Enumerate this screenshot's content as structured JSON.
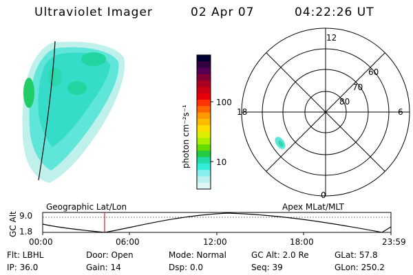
{
  "header": {
    "title": "Ultraviolet Imager",
    "date": "02 Apr 07",
    "time": "04:22:26 UT"
  },
  "colorbar": {
    "unit_label": "photon cm⁻²s⁻¹",
    "tick_labels": [
      "100",
      "10"
    ],
    "colors": [
      "#000033",
      "#330044",
      "#550055",
      "#800033",
      "#aa0022",
      "#cc0011",
      "#e8000a",
      "#ff3300",
      "#ff6600",
      "#ff9900",
      "#ffbb00",
      "#ffdd00",
      "#ddee00",
      "#aaee00",
      "#66dd00",
      "#22cc44",
      "#22ddaa",
      "#33eedd",
      "#88eeee",
      "#bbf0f0",
      "#ddf6f6"
    ]
  },
  "polar": {
    "mlt_labels": [
      "12",
      "18",
      "6",
      "0"
    ],
    "lat_labels": [
      "60",
      "70",
      "80"
    ]
  },
  "timeline": {
    "left_title": "Geographic Lat/Lon",
    "right_title": "Apex MLat/MLT",
    "y_axis_title": "GC Alt",
    "y_ticks": [
      "9.0",
      "1.8"
    ],
    "x_ticks": [
      "00:00",
      "06:00",
      "12:00",
      "18:00",
      "23:59"
    ]
  },
  "footer": {
    "filter": "Flt: LBHL",
    "door": "Door: Open",
    "mode": "Mode: Normal",
    "gc_alt": "GC Alt: 2.0 Re",
    "glat": "GLat:  57.8",
    "ip": "IP: 36.0",
    "gain": "Gain: 14",
    "dsp": "Dsp:     0.0",
    "seq": "Seq: 39",
    "glon": "GLon: 250.2"
  }
}
